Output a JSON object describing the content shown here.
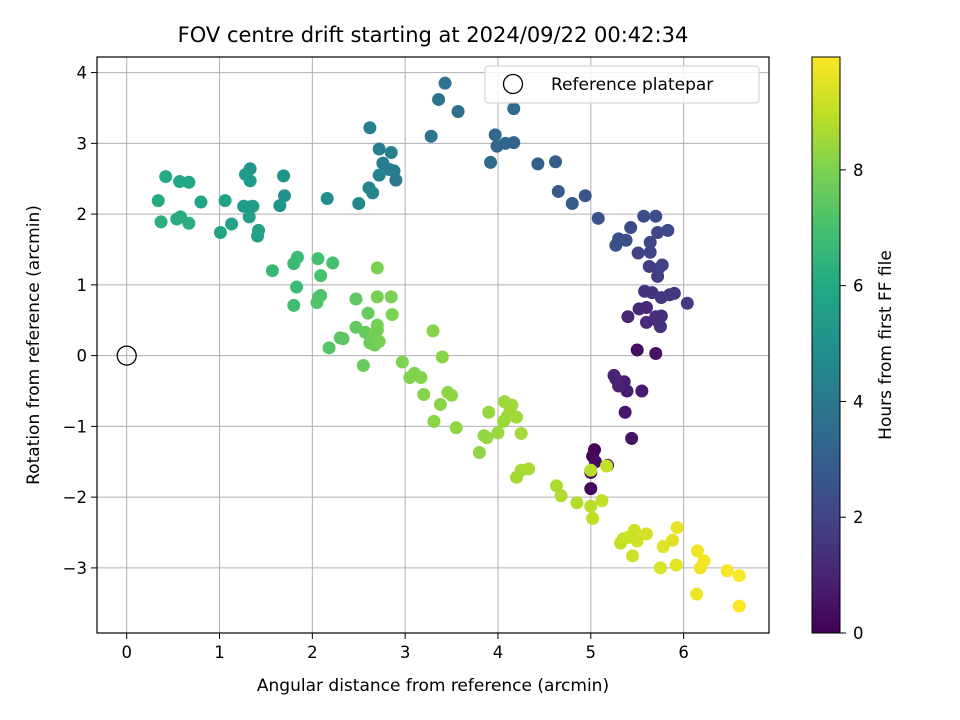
{
  "chart_data": {
    "type": "scatter",
    "title": "FOV centre drift starting at 2024/09/22 00:42:34",
    "xlabel": "Angular distance from reference (arcmin)",
    "ylabel": "Rotation from reference (arcmin)",
    "xlim": [
      -0.32,
      6.92
    ],
    "ylim": [
      -3.92,
      4.22
    ],
    "xticks": [
      "0",
      "1",
      "2",
      "3",
      "4",
      "5",
      "6"
    ],
    "yticks": [
      "−3",
      "−2",
      "−1",
      "0",
      "1",
      "2",
      "3",
      "4"
    ],
    "grid": true,
    "legend": {
      "placement": "top-right",
      "entries": [
        "Reference platepar"
      ]
    },
    "reference_point": {
      "x": 0,
      "y": 0
    },
    "colorbar": {
      "label": "Hours from first FF file",
      "ticks": [
        "0",
        "2",
        "4",
        "6",
        "8"
      ],
      "range": [
        0,
        9.95
      ],
      "colormap": "viridis"
    },
    "points": [
      {
        "x": 5.04,
        "y": -1.33,
        "h": 0.05
      },
      {
        "x": 5.02,
        "y": -1.42,
        "h": 0.1
      },
      {
        "x": 5.0,
        "y": -1.65,
        "h": 0.15
      },
      {
        "x": 5.0,
        "y": -1.88,
        "h": 0.2
      },
      {
        "x": 5.18,
        "y": -1.55,
        "h": 0.25
      },
      {
        "x": 5.05,
        "y": -1.5,
        "h": 0.3
      },
      {
        "x": 5.5,
        "y": 0.08,
        "h": 0.35
      },
      {
        "x": 5.7,
        "y": 0.03,
        "h": 0.45
      },
      {
        "x": 5.44,
        "y": -1.17,
        "h": 0.55
      },
      {
        "x": 5.37,
        "y": -0.8,
        "h": 0.65
      },
      {
        "x": 5.55,
        "y": -0.5,
        "h": 0.75
      },
      {
        "x": 5.39,
        "y": -0.5,
        "h": 0.8
      },
      {
        "x": 5.36,
        "y": -0.37,
        "h": 0.85
      },
      {
        "x": 5.3,
        "y": -0.43,
        "h": 0.9
      },
      {
        "x": 5.25,
        "y": -0.28,
        "h": 0.95
      },
      {
        "x": 5.27,
        "y": -0.33,
        "h": 1.0
      },
      {
        "x": 5.4,
        "y": 0.55,
        "h": 1.05
      },
      {
        "x": 5.52,
        "y": 0.66,
        "h": 1.1
      },
      {
        "x": 5.6,
        "y": 0.68,
        "h": 1.15
      },
      {
        "x": 5.6,
        "y": 0.47,
        "h": 1.2
      },
      {
        "x": 5.72,
        "y": 0.49,
        "h": 1.25
      },
      {
        "x": 5.7,
        "y": 0.55,
        "h": 1.3
      },
      {
        "x": 5.76,
        "y": 0.56,
        "h": 1.35
      },
      {
        "x": 5.75,
        "y": 0.41,
        "h": 1.4
      },
      {
        "x": 5.58,
        "y": 0.91,
        "h": 1.45
      },
      {
        "x": 5.66,
        "y": 0.89,
        "h": 1.5
      },
      {
        "x": 5.76,
        "y": 0.82,
        "h": 1.55
      },
      {
        "x": 5.85,
        "y": 0.86,
        "h": 1.6
      },
      {
        "x": 5.9,
        "y": 0.88,
        "h": 1.65
      },
      {
        "x": 6.04,
        "y": 0.74,
        "h": 1.7
      },
      {
        "x": 5.72,
        "y": 1.12,
        "h": 1.75
      },
      {
        "x": 5.63,
        "y": 1.26,
        "h": 1.8
      },
      {
        "x": 5.73,
        "y": 1.23,
        "h": 1.85
      },
      {
        "x": 5.77,
        "y": 1.28,
        "h": 1.9
      },
      {
        "x": 5.51,
        "y": 1.45,
        "h": 1.95
      },
      {
        "x": 5.64,
        "y": 1.46,
        "h": 2.0
      },
      {
        "x": 5.64,
        "y": 1.6,
        "h": 2.05
      },
      {
        "x": 5.72,
        "y": 1.74,
        "h": 2.1
      },
      {
        "x": 5.83,
        "y": 1.77,
        "h": 2.15
      },
      {
        "x": 5.43,
        "y": 1.81,
        "h": 2.2
      },
      {
        "x": 5.57,
        "y": 1.97,
        "h": 2.25
      },
      {
        "x": 5.7,
        "y": 1.97,
        "h": 2.3
      },
      {
        "x": 5.3,
        "y": 1.65,
        "h": 2.35
      },
      {
        "x": 5.38,
        "y": 1.63,
        "h": 2.4
      },
      {
        "x": 5.27,
        "y": 1.56,
        "h": 2.45
      },
      {
        "x": 5.08,
        "y": 1.94,
        "h": 2.55
      },
      {
        "x": 4.94,
        "y": 2.26,
        "h": 2.65
      },
      {
        "x": 4.8,
        "y": 2.15,
        "h": 2.75
      },
      {
        "x": 4.65,
        "y": 2.32,
        "h": 2.85
      },
      {
        "x": 4.62,
        "y": 2.74,
        "h": 2.95
      },
      {
        "x": 4.43,
        "y": 2.71,
        "h": 3.05
      },
      {
        "x": 4.17,
        "y": 3.01,
        "h": 3.15
      },
      {
        "x": 4.08,
        "y": 3.0,
        "h": 3.25
      },
      {
        "x": 3.99,
        "y": 2.96,
        "h": 3.3
      },
      {
        "x": 3.97,
        "y": 3.12,
        "h": 3.35
      },
      {
        "x": 3.92,
        "y": 2.73,
        "h": 3.45
      },
      {
        "x": 4.17,
        "y": 3.49,
        "h": 3.55
      },
      {
        "x": 3.57,
        "y": 3.45,
        "h": 3.65
      },
      {
        "x": 3.43,
        "y": 3.85,
        "h": 3.75
      },
      {
        "x": 3.36,
        "y": 3.62,
        "h": 3.8
      },
      {
        "x": 3.28,
        "y": 3.1,
        "h": 3.9
      },
      {
        "x": 2.9,
        "y": 2.48,
        "h": 4.0
      },
      {
        "x": 2.88,
        "y": 2.61,
        "h": 4.05
      },
      {
        "x": 2.83,
        "y": 2.63,
        "h": 4.1
      },
      {
        "x": 2.76,
        "y": 2.72,
        "h": 4.15
      },
      {
        "x": 2.72,
        "y": 2.92,
        "h": 4.2
      },
      {
        "x": 2.85,
        "y": 2.87,
        "h": 4.25
      },
      {
        "x": 2.62,
        "y": 3.22,
        "h": 4.3
      },
      {
        "x": 2.72,
        "y": 2.55,
        "h": 4.4
      },
      {
        "x": 2.61,
        "y": 2.37,
        "h": 4.5
      },
      {
        "x": 2.65,
        "y": 2.3,
        "h": 4.55
      },
      {
        "x": 2.5,
        "y": 2.15,
        "h": 4.65
      },
      {
        "x": 2.16,
        "y": 2.22,
        "h": 4.8
      },
      {
        "x": 1.7,
        "y": 2.26,
        "h": 5.0
      },
      {
        "x": 1.69,
        "y": 2.54,
        "h": 5.05
      },
      {
        "x": 1.65,
        "y": 2.12,
        "h": 5.1
      },
      {
        "x": 1.33,
        "y": 2.64,
        "h": 5.25
      },
      {
        "x": 1.28,
        "y": 2.56,
        "h": 5.3
      },
      {
        "x": 1.33,
        "y": 2.47,
        "h": 5.35
      },
      {
        "x": 1.26,
        "y": 2.11,
        "h": 5.4
      },
      {
        "x": 1.32,
        "y": 2.1,
        "h": 5.45
      },
      {
        "x": 1.36,
        "y": 2.11,
        "h": 5.5
      },
      {
        "x": 1.32,
        "y": 1.96,
        "h": 5.55
      },
      {
        "x": 1.41,
        "y": 1.69,
        "h": 5.6
      },
      {
        "x": 1.42,
        "y": 1.77,
        "h": 5.65
      },
      {
        "x": 1.06,
        "y": 2.19,
        "h": 5.7
      },
      {
        "x": 1.13,
        "y": 1.86,
        "h": 5.75
      },
      {
        "x": 1.01,
        "y": 1.74,
        "h": 5.8
      },
      {
        "x": 0.8,
        "y": 2.17,
        "h": 5.85
      },
      {
        "x": 0.67,
        "y": 2.45,
        "h": 5.9
      },
      {
        "x": 0.57,
        "y": 2.46,
        "h": 5.95
      },
      {
        "x": 0.42,
        "y": 2.53,
        "h": 6.0
      },
      {
        "x": 0.34,
        "y": 2.19,
        "h": 6.05
      },
      {
        "x": 0.54,
        "y": 1.93,
        "h": 6.1
      },
      {
        "x": 0.58,
        "y": 1.96,
        "h": 6.15
      },
      {
        "x": 0.67,
        "y": 1.87,
        "h": 6.2
      },
      {
        "x": 0.37,
        "y": 1.89,
        "h": 6.25
      },
      {
        "x": 1.57,
        "y": 1.2,
        "h": 6.6
      },
      {
        "x": 1.8,
        "y": 1.3,
        "h": 6.7
      },
      {
        "x": 1.84,
        "y": 1.39,
        "h": 6.75
      },
      {
        "x": 1.83,
        "y": 0.97,
        "h": 6.8
      },
      {
        "x": 1.8,
        "y": 0.71,
        "h": 6.85
      },
      {
        "x": 2.06,
        "y": 1.37,
        "h": 6.95
      },
      {
        "x": 2.22,
        "y": 1.31,
        "h": 7.0
      },
      {
        "x": 2.09,
        "y": 1.13,
        "h": 7.05
      },
      {
        "x": 2.07,
        "y": 0.83,
        "h": 7.1
      },
      {
        "x": 2.09,
        "y": 0.85,
        "h": 7.15
      },
      {
        "x": 2.05,
        "y": 0.75,
        "h": 7.2
      },
      {
        "x": 2.18,
        "y": 0.11,
        "h": 7.3
      },
      {
        "x": 2.33,
        "y": 0.24,
        "h": 7.35
      },
      {
        "x": 2.3,
        "y": 0.25,
        "h": 7.4
      },
      {
        "x": 2.47,
        "y": 0.8,
        "h": 7.45
      },
      {
        "x": 2.47,
        "y": 0.4,
        "h": 7.5
      },
      {
        "x": 2.57,
        "y": 0.33,
        "h": 7.55
      },
      {
        "x": 2.6,
        "y": 0.6,
        "h": 7.6
      },
      {
        "x": 2.55,
        "y": -0.14,
        "h": 7.65
      },
      {
        "x": 2.62,
        "y": 0.18,
        "h": 7.7
      },
      {
        "x": 2.67,
        "y": 0.15,
        "h": 7.75
      },
      {
        "x": 2.67,
        "y": 0.3,
        "h": 7.8
      },
      {
        "x": 2.7,
        "y": 0.36,
        "h": 7.82
      },
      {
        "x": 2.7,
        "y": 0.43,
        "h": 7.85
      },
      {
        "x": 2.72,
        "y": 0.2,
        "h": 7.88
      },
      {
        "x": 2.7,
        "y": 0.83,
        "h": 7.9
      },
      {
        "x": 2.7,
        "y": 1.24,
        "h": 7.92
      },
      {
        "x": 2.85,
        "y": 0.83,
        "h": 7.95
      },
      {
        "x": 2.86,
        "y": 0.58,
        "h": 7.97
      },
      {
        "x": 2.97,
        "y": -0.09,
        "h": 8.0
      },
      {
        "x": 3.05,
        "y": -0.31,
        "h": 8.02
      },
      {
        "x": 3.1,
        "y": -0.25,
        "h": 8.05
      },
      {
        "x": 3.17,
        "y": -0.31,
        "h": 8.08
      },
      {
        "x": 3.2,
        "y": -0.55,
        "h": 8.1
      },
      {
        "x": 3.3,
        "y": 0.35,
        "h": 8.12
      },
      {
        "x": 3.4,
        "y": -0.02,
        "h": 8.15
      },
      {
        "x": 3.31,
        "y": -0.93,
        "h": 8.18
      },
      {
        "x": 3.38,
        "y": -0.69,
        "h": 8.2
      },
      {
        "x": 3.46,
        "y": -0.52,
        "h": 8.22
      },
      {
        "x": 3.5,
        "y": -0.56,
        "h": 8.25
      },
      {
        "x": 3.55,
        "y": -1.02,
        "h": 8.28
      },
      {
        "x": 3.8,
        "y": -1.37,
        "h": 8.3
      },
      {
        "x": 3.85,
        "y": -1.13,
        "h": 8.32
      },
      {
        "x": 3.88,
        "y": -1.16,
        "h": 8.35
      },
      {
        "x": 3.9,
        "y": -0.8,
        "h": 8.38
      },
      {
        "x": 4.0,
        "y": -1.09,
        "h": 8.4
      },
      {
        "x": 4.06,
        "y": -0.93,
        "h": 8.42
      },
      {
        "x": 4.07,
        "y": -0.65,
        "h": 8.45
      },
      {
        "x": 4.1,
        "y": -0.86,
        "h": 8.48
      },
      {
        "x": 4.13,
        "y": -0.78,
        "h": 8.5
      },
      {
        "x": 4.15,
        "y": -0.7,
        "h": 8.52
      },
      {
        "x": 4.2,
        "y": -0.87,
        "h": 8.55
      },
      {
        "x": 4.25,
        "y": -1.1,
        "h": 8.58
      },
      {
        "x": 4.2,
        "y": -1.72,
        "h": 8.6
      },
      {
        "x": 4.25,
        "y": -1.62,
        "h": 8.62
      },
      {
        "x": 4.33,
        "y": -1.6,
        "h": 8.65
      },
      {
        "x": 4.63,
        "y": -1.84,
        "h": 8.7
      },
      {
        "x": 4.68,
        "y": -1.98,
        "h": 8.75
      },
      {
        "x": 4.85,
        "y": -2.08,
        "h": 8.8
      },
      {
        "x": 5.0,
        "y": -1.62,
        "h": 8.85
      },
      {
        "x": 5.0,
        "y": -2.13,
        "h": 8.9
      },
      {
        "x": 5.02,
        "y": -2.3,
        "h": 8.95
      },
      {
        "x": 5.12,
        "y": -2.05,
        "h": 9.0
      },
      {
        "x": 5.17,
        "y": -1.56,
        "h": 9.02
      },
      {
        "x": 5.32,
        "y": -2.65,
        "h": 9.05
      },
      {
        "x": 5.35,
        "y": -2.59,
        "h": 9.1
      },
      {
        "x": 5.4,
        "y": -2.57,
        "h": 9.15
      },
      {
        "x": 5.45,
        "y": -2.83,
        "h": 9.2
      },
      {
        "x": 5.47,
        "y": -2.47,
        "h": 9.22
      },
      {
        "x": 5.5,
        "y": -2.62,
        "h": 9.25
      },
      {
        "x": 5.6,
        "y": -2.52,
        "h": 9.3
      },
      {
        "x": 5.75,
        "y": -3.0,
        "h": 9.4
      },
      {
        "x": 5.78,
        "y": -2.7,
        "h": 9.45
      },
      {
        "x": 5.88,
        "y": -2.61,
        "h": 9.5
      },
      {
        "x": 5.92,
        "y": -2.96,
        "h": 9.55
      },
      {
        "x": 5.93,
        "y": -2.43,
        "h": 9.6
      },
      {
        "x": 6.14,
        "y": -3.37,
        "h": 9.65
      },
      {
        "x": 6.15,
        "y": -2.76,
        "h": 9.7
      },
      {
        "x": 6.18,
        "y": -3.0,
        "h": 9.75
      },
      {
        "x": 6.22,
        "y": -2.9,
        "h": 9.8
      },
      {
        "x": 6.47,
        "y": -3.04,
        "h": 9.85
      },
      {
        "x": 6.6,
        "y": -3.11,
        "h": 9.9
      },
      {
        "x": 6.6,
        "y": -3.54,
        "h": 9.95
      }
    ]
  }
}
